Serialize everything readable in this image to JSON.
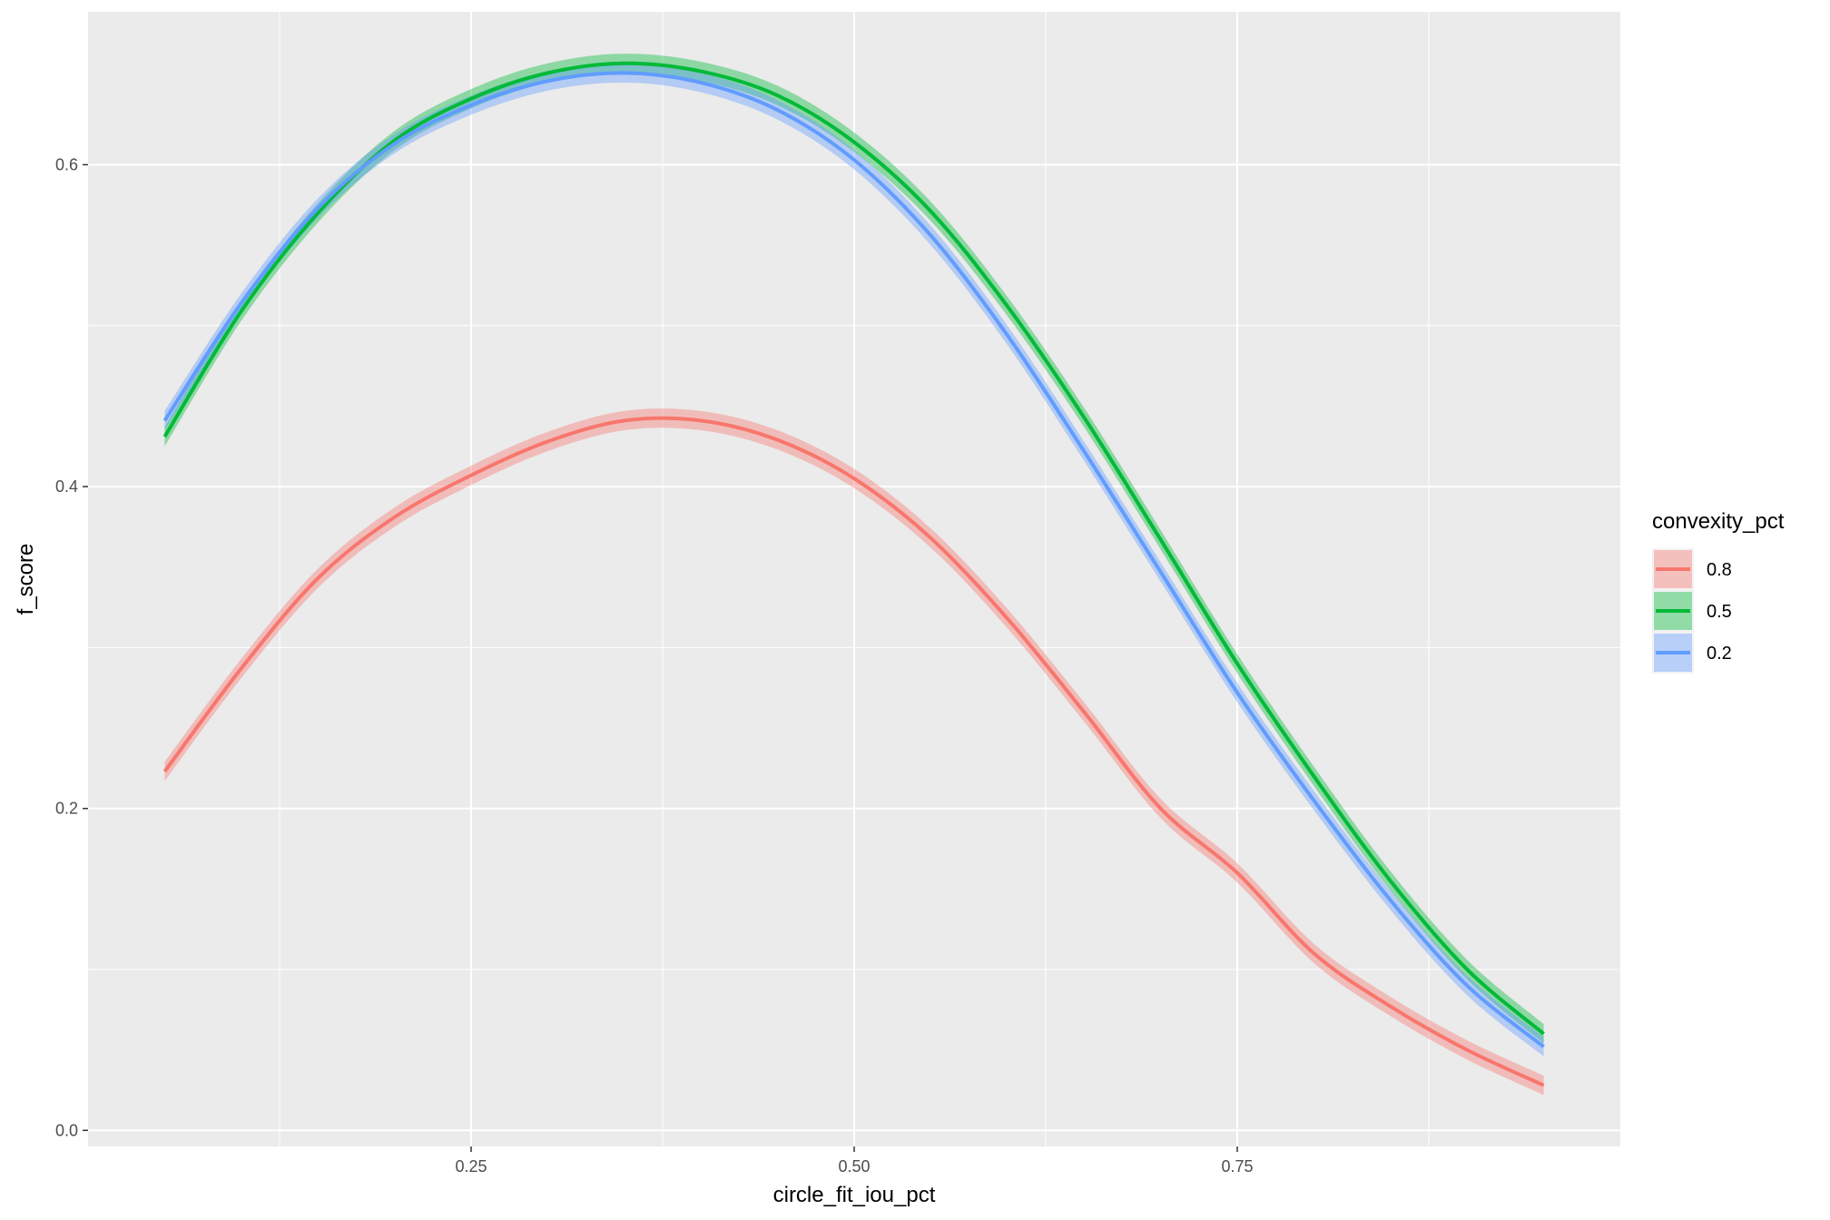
{
  "chart_data": {
    "type": "line",
    "xlabel": "circle_fit_iou_pct",
    "ylabel": "f_score",
    "xlim": [
      0.0,
      1.0
    ],
    "ylim": [
      -0.01,
      0.695
    ],
    "x_ticks": [
      0.25,
      0.5,
      0.75
    ],
    "x_tick_labels": [
      "0.25",
      "0.50",
      "0.75"
    ],
    "y_ticks": [
      0.0,
      0.2,
      0.4,
      0.6
    ],
    "y_tick_labels": [
      "0.0",
      "0.2",
      "0.4",
      "0.6"
    ],
    "grid": true,
    "legend_position": "right",
    "legend_title": "convexity_pct",
    "x": [
      0.05,
      0.1,
      0.15,
      0.2,
      0.25,
      0.3,
      0.35,
      0.4,
      0.45,
      0.5,
      0.55,
      0.6,
      0.65,
      0.7,
      0.75,
      0.8,
      0.85,
      0.9,
      0.95
    ],
    "series": [
      {
        "name": "0.8",
        "color": "#F8766D",
        "values": [
          0.223,
          0.287,
          0.343,
          0.381,
          0.407,
          0.428,
          0.441,
          0.441,
          0.429,
          0.405,
          0.368,
          0.318,
          0.26,
          0.2,
          0.16,
          0.11,
          0.077,
          0.05,
          0.028
        ]
      },
      {
        "name": "0.5",
        "color": "#00BA38",
        "values": [
          0.431,
          0.509,
          0.57,
          0.615,
          0.641,
          0.657,
          0.663,
          0.658,
          0.643,
          0.614,
          0.571,
          0.512,
          0.443,
          0.367,
          0.29,
          0.22,
          0.155,
          0.1,
          0.06
        ]
      },
      {
        "name": "0.2",
        "color": "#619CFF",
        "values": [
          0.441,
          0.514,
          0.573,
          0.613,
          0.637,
          0.652,
          0.657,
          0.651,
          0.634,
          0.603,
          0.556,
          0.494,
          0.422,
          0.347,
          0.272,
          0.205,
          0.143,
          0.09,
          0.052
        ]
      }
    ],
    "legend_order": [
      "0.8",
      "0.5",
      "0.2"
    ]
  }
}
